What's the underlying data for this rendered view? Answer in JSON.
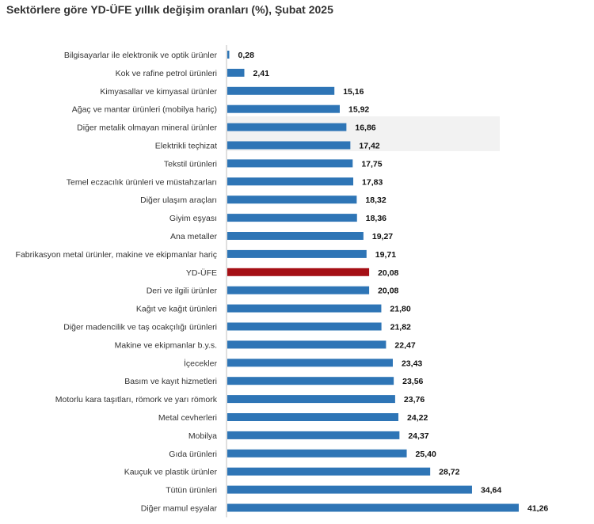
{
  "chart_data": {
    "type": "bar",
    "orientation": "horizontal",
    "title": "Sektörlere göre YD-ÜFE yıllık değişim oranları (%), Şubat 2025",
    "xlabel": "",
    "ylabel": "",
    "xlim": [
      0,
      42
    ],
    "categories": [
      "Bilgisayarlar ile elektronik ve optik ürünler",
      "Kok ve rafine petrol ürünleri",
      "Kimyasallar ve kimyasal ürünler",
      "Ağaç ve mantar ürünleri (mobilya hariç)",
      "Diğer metalik olmayan mineral ürünler",
      "Elektrikli teçhizat",
      "Tekstil ürünleri",
      "Temel eczacılık ürünleri ve müstahzarları",
      "Diğer ulaşım araçları",
      "Giyim eşyası",
      "Ana metaller",
      "Fabrikasyon metal ürünler, makine ve ekipmanlar hariç",
      "YD-ÜFE",
      "Deri ve ilgili ürünler",
      "Kağıt ve kağıt ürünleri",
      "Diğer madencilik ve taş ocakçılığı ürünleri",
      "Makine ve ekipmanlar b.y.s.",
      "İçecekler",
      "Basım ve kayıt hizmetleri",
      "Motorlu kara taşıtları, römork ve yarı römork",
      "Metal cevherleri",
      "Mobilya",
      "Gıda ürünleri",
      "Kauçuk ve plastik ürünler",
      "Tütün ürünleri",
      "Diğer mamul eşyalar"
    ],
    "values": [
      0.28,
      2.41,
      15.16,
      15.92,
      16.86,
      17.42,
      17.75,
      17.83,
      18.32,
      18.36,
      19.27,
      19.71,
      20.08,
      20.08,
      21.8,
      21.82,
      22.47,
      23.43,
      23.56,
      23.76,
      24.22,
      24.37,
      25.4,
      28.72,
      34.64,
      41.26
    ],
    "value_labels": [
      "0,28",
      "2,41",
      "15,16",
      "15,92",
      "16,86",
      "17,42",
      "17,75",
      "17,83",
      "18,32",
      "18,36",
      "19,27",
      "19,71",
      "20,08",
      "20,08",
      "21,80",
      "21,82",
      "22,47",
      "23,43",
      "23,56",
      "23,76",
      "24,22",
      "24,37",
      "25,40",
      "28,72",
      "34,64",
      "41,26"
    ],
    "highlight_category": "YD-ÜFE",
    "colors": {
      "bar": "#2e75b6",
      "highlight": "#a50f15",
      "axis": "#bfbfbf"
    }
  }
}
